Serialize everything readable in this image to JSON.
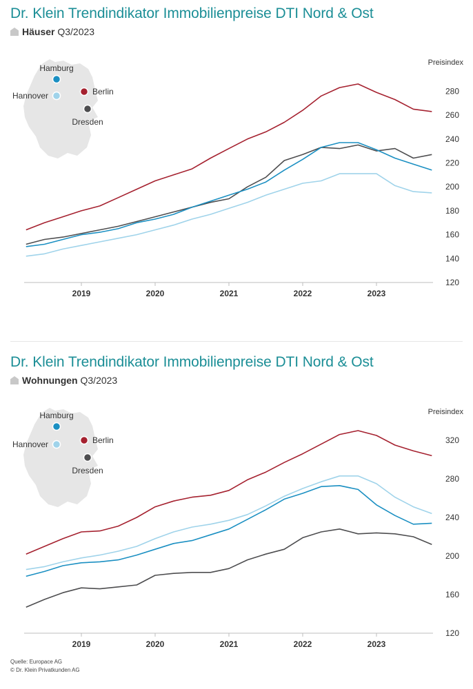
{
  "source": {
    "line1": "Quelle: Europace AG",
    "line2": "© Dr. Klein Privatkunden AG"
  },
  "colors": {
    "Hamburg": "#1a8fc2",
    "Berlin": "#a5212f",
    "Hannover": "#9fd3ea",
    "Dresden": "#4d4d4f",
    "title": "#1b8e96"
  },
  "chart_data": [
    {
      "type": "line",
      "title": "Dr. Klein Trendindikator Immobilienpreise DTI Nord & Ost",
      "subtitle_bold": "Häuser",
      "subtitle_rest": "Q3/2023",
      "ylabel": "Preisindex",
      "ylim": [
        120,
        290
      ],
      "yticks": [
        120,
        140,
        160,
        180,
        200,
        220,
        240,
        260,
        280
      ],
      "xlim": [
        2018.25,
        2023.85
      ],
      "xticks": [
        "2019",
        "2020",
        "2021",
        "2022",
        "2023"
      ],
      "legend_placement": "top-left map",
      "series": [
        {
          "name": "Berlin",
          "x": [
            2018.25,
            2018.5,
            2018.75,
            2019.0,
            2019.25,
            2019.5,
            2019.75,
            2020.0,
            2020.25,
            2020.5,
            2020.75,
            2021.0,
            2021.25,
            2021.5,
            2021.75,
            2022.0,
            2022.25,
            2022.5,
            2022.75,
            2023.0,
            2023.25,
            2023.5,
            2023.75
          ],
          "values": [
            164,
            170,
            175,
            180,
            184,
            191,
            198,
            205,
            210,
            215,
            224,
            232,
            240,
            246,
            254,
            264,
            276,
            283,
            286,
            279,
            273,
            265,
            263
          ]
        },
        {
          "name": "Dresden",
          "x": [
            2018.25,
            2018.5,
            2018.75,
            2019.0,
            2019.25,
            2019.5,
            2019.75,
            2020.0,
            2020.25,
            2020.5,
            2020.75,
            2021.0,
            2021.25,
            2021.5,
            2021.75,
            2022.0,
            2022.25,
            2022.5,
            2022.75,
            2023.0,
            2023.25,
            2023.5,
            2023.75
          ],
          "values": [
            152,
            156,
            158,
            161,
            164,
            167,
            171,
            175,
            179,
            183,
            187,
            190,
            200,
            208,
            222,
            227,
            233,
            232,
            235,
            230,
            232,
            224,
            227
          ]
        },
        {
          "name": "Hamburg",
          "x": [
            2018.25,
            2018.5,
            2018.75,
            2019.0,
            2019.25,
            2019.5,
            2019.75,
            2020.0,
            2020.25,
            2020.5,
            2020.75,
            2021.0,
            2021.25,
            2021.5,
            2021.75,
            2022.0,
            2022.25,
            2022.5,
            2022.75,
            2023.0,
            2023.25,
            2023.5,
            2023.75
          ],
          "values": [
            150,
            152,
            156,
            160,
            162,
            165,
            170,
            173,
            177,
            183,
            188,
            193,
            198,
            204,
            214,
            223,
            233,
            237,
            237,
            231,
            224,
            219,
            214
          ]
        },
        {
          "name": "Hannover",
          "x": [
            2018.25,
            2018.5,
            2018.75,
            2019.0,
            2019.25,
            2019.5,
            2019.75,
            2020.0,
            2020.25,
            2020.5,
            2020.75,
            2021.0,
            2021.25,
            2021.5,
            2021.75,
            2022.0,
            2022.25,
            2022.5,
            2022.75,
            2023.0,
            2023.25,
            2023.5,
            2023.75
          ],
          "values": [
            142,
            144,
            148,
            151,
            154,
            157,
            160,
            164,
            168,
            173,
            177,
            182,
            187,
            193,
            198,
            203,
            205,
            211,
            211,
            211,
            201,
            196,
            195
          ]
        }
      ]
    },
    {
      "type": "line",
      "title": "Dr. Klein Trendindikator Immobilienpreise DTI Nord & Ost",
      "subtitle_bold": "Wohnungen",
      "subtitle_rest": "Q3/2023",
      "ylabel": "Preisindex",
      "ylim": [
        120,
        335
      ],
      "yticks": [
        120,
        160,
        200,
        240,
        280,
        320
      ],
      "xlim": [
        2018.25,
        2023.85
      ],
      "xticks": [
        "2019",
        "2020",
        "2021",
        "2022",
        "2023"
      ],
      "legend_placement": "top-left map",
      "series": [
        {
          "name": "Berlin",
          "x": [
            2018.25,
            2018.5,
            2018.75,
            2019.0,
            2019.25,
            2019.5,
            2019.75,
            2020.0,
            2020.25,
            2020.5,
            2020.75,
            2021.0,
            2021.25,
            2021.5,
            2021.75,
            2022.0,
            2022.25,
            2022.5,
            2022.75,
            2023.0,
            2023.25,
            2023.5,
            2023.75
          ],
          "values": [
            202,
            210,
            218,
            225,
            226,
            231,
            240,
            251,
            257,
            261,
            263,
            268,
            279,
            287,
            297,
            306,
            316,
            326,
            330,
            325,
            315,
            309,
            304
          ]
        },
        {
          "name": "Hannover",
          "x": [
            2018.25,
            2018.5,
            2018.75,
            2019.0,
            2019.25,
            2019.5,
            2019.75,
            2020.0,
            2020.25,
            2020.5,
            2020.75,
            2021.0,
            2021.25,
            2021.5,
            2021.75,
            2022.0,
            2022.25,
            2022.5,
            2022.75,
            2023.0,
            2023.25,
            2023.5,
            2023.75
          ],
          "values": [
            186,
            189,
            194,
            198,
            201,
            205,
            210,
            218,
            225,
            230,
            233,
            237,
            243,
            252,
            262,
            270,
            277,
            283,
            283,
            275,
            261,
            251,
            244
          ]
        },
        {
          "name": "Hamburg",
          "x": [
            2018.25,
            2018.5,
            2018.75,
            2019.0,
            2019.25,
            2019.5,
            2019.75,
            2020.0,
            2020.25,
            2020.5,
            2020.75,
            2021.0,
            2021.25,
            2021.5,
            2021.75,
            2022.0,
            2022.25,
            2022.5,
            2022.75,
            2023.0,
            2023.25,
            2023.5,
            2023.75
          ],
          "values": [
            179,
            184,
            190,
            193,
            194,
            196,
            201,
            207,
            213,
            216,
            222,
            228,
            238,
            248,
            259,
            265,
            272,
            273,
            269,
            253,
            242,
            233,
            234
          ]
        },
        {
          "name": "Dresden",
          "x": [
            2018.25,
            2018.5,
            2018.75,
            2019.0,
            2019.25,
            2019.5,
            2019.75,
            2020.0,
            2020.25,
            2020.5,
            2020.75,
            2021.0,
            2021.25,
            2021.5,
            2021.75,
            2022.0,
            2022.25,
            2022.5,
            2022.75,
            2023.0,
            2023.25,
            2023.5,
            2023.75
          ],
          "values": [
            147,
            155,
            162,
            167,
            166,
            168,
            170,
            180,
            182,
            183,
            183,
            187,
            196,
            202,
            207,
            219,
            225,
            228,
            223,
            224,
            223,
            220,
            212
          ]
        }
      ]
    }
  ]
}
